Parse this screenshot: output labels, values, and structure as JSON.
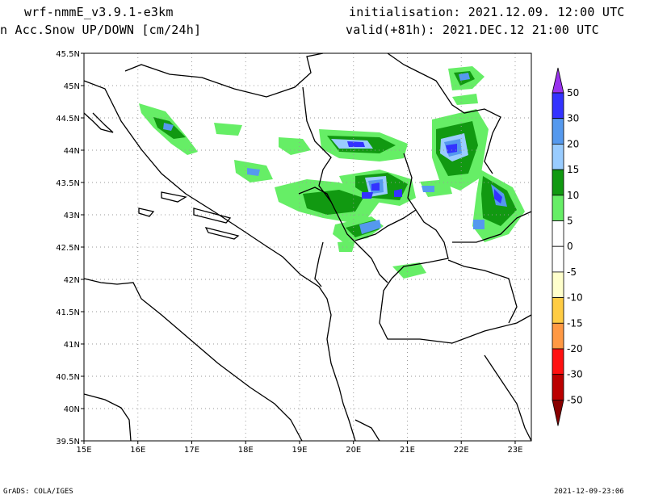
{
  "header": {
    "model": "wrf-nmmE_v3.9.1-e3km",
    "field": "n Acc.Snow UP/DOWN [cm/24h]",
    "init": "initialisation: 2021.12.09.  12:00 UTC",
    "valid": "valid(+81h): 2021.DEC.12 21:00 UTC"
  },
  "footer": {
    "credit": "GrADS: COLA/IGES",
    "stamp": "2021-12-09-23:06"
  },
  "map": {
    "lon_ticks": [
      "15E",
      "16E",
      "17E",
      "18E",
      "19E",
      "20E",
      "21E",
      "22E",
      "23E"
    ],
    "lat_ticks": [
      "45.5N",
      "45N",
      "44.5N",
      "44N",
      "43.5N",
      "43N",
      "42.5N",
      "42N",
      "41.5N",
      "41N",
      "40.5N",
      "40N",
      "39.5N"
    ]
  },
  "colorbar": {
    "labels": [
      "50",
      "30",
      "20",
      "15",
      "10",
      "5",
      "0",
      "-5",
      "-10",
      "-15",
      "-20",
      "-30",
      "-50"
    ],
    "colors": [
      "#3333ff",
      "#5599ee",
      "#99ccff",
      "#119911",
      "#66ee66",
      "#ffffff",
      "#ffffff",
      "#ffffcc",
      "#ffcc44",
      "#ff9944",
      "#ff1111",
      "#bb0000"
    ],
    "top_arrow": "#9933ee",
    "bottom_arrow": "#880000"
  }
}
